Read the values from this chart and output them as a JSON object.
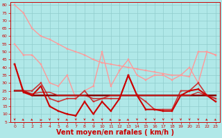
{
  "bg_color": "#b0e8e8",
  "grid_color": "#90cccc",
  "xlabel": "Vent moyen/en rafales ( km/h )",
  "xlabel_color": "#cc0000",
  "xlabel_fontsize": 7,
  "tick_color": "#cc0000",
  "ylim": [
    5,
    82
  ],
  "xlim": [
    -0.5,
    23.5
  ],
  "yticks": [
    5,
    10,
    15,
    20,
    25,
    30,
    35,
    40,
    45,
    50,
    55,
    60,
    65,
    70,
    75,
    80
  ],
  "xticks": [
    0,
    1,
    2,
    3,
    4,
    5,
    6,
    7,
    8,
    9,
    10,
    11,
    12,
    13,
    14,
    15,
    16,
    17,
    18,
    19,
    20,
    21,
    22,
    23
  ],
  "lines": [
    {
      "x": [
        0,
        1,
        2,
        3,
        4,
        5,
        6,
        7,
        8,
        9,
        10,
        11,
        12,
        13,
        14,
        15,
        16,
        17,
        18,
        19,
        20,
        21,
        22,
        23
      ],
      "y": [
        80,
        75,
        65,
        60,
        58,
        55,
        52,
        50,
        48,
        45,
        43,
        42,
        41,
        40,
        39,
        38,
        37,
        36,
        35,
        35,
        34,
        50,
        50,
        48
      ],
      "color": "#ff9999",
      "lw": 1.0,
      "marker": "s",
      "ms": 2.0
    },
    {
      "x": [
        0,
        1,
        2,
        3,
        4,
        5,
        6,
        7,
        8,
        9,
        10,
        11,
        12,
        13,
        14,
        15,
        16,
        17,
        18,
        19,
        20,
        21,
        22,
        23
      ],
      "y": [
        55,
        48,
        48,
        42,
        30,
        28,
        35,
        20,
        25,
        28,
        50,
        28,
        38,
        45,
        35,
        32,
        35,
        35,
        32,
        35,
        40,
        30,
        50,
        48
      ],
      "color": "#ff9999",
      "lw": 1.0,
      "marker": "s",
      "ms": 2.0
    },
    {
      "x": [
        0,
        1,
        2,
        3,
        4,
        5,
        6,
        7,
        8,
        9,
        10,
        11,
        12,
        13,
        14,
        15,
        16,
        17,
        18,
        19,
        20,
        21,
        22,
        23
      ],
      "y": [
        42,
        25,
        25,
        30,
        20,
        18,
        20,
        20,
        25,
        18,
        20,
        20,
        20,
        35,
        22,
        18,
        13,
        13,
        13,
        25,
        25,
        30,
        22,
        20
      ],
      "color": "#cc3333",
      "lw": 1.2,
      "marker": "s",
      "ms": 2.0
    },
    {
      "x": [
        0,
        1,
        2,
        3,
        4,
        5,
        6,
        7,
        8,
        9,
        10,
        11,
        12,
        13,
        14,
        15,
        16,
        17,
        18,
        19,
        20,
        21,
        22,
        23
      ],
      "y": [
        25,
        25,
        22,
        22,
        22,
        22,
        22,
        22,
        22,
        22,
        22,
        22,
        22,
        22,
        22,
        22,
        22,
        22,
        22,
        22,
        22,
        22,
        22,
        22
      ],
      "color": "#880000",
      "lw": 1.8,
      "marker": null,
      "ms": 0
    },
    {
      "x": [
        0,
        1,
        2,
        3,
        4,
        5,
        6,
        7,
        8,
        9,
        10,
        11,
        12,
        13,
        14,
        15,
        16,
        17,
        18,
        19,
        20,
        21,
        22,
        23
      ],
      "y": [
        25,
        25,
        23,
        24,
        24,
        22,
        22,
        22,
        22,
        20,
        20,
        22,
        22,
        22,
        22,
        22,
        22,
        22,
        22,
        22,
        22,
        24,
        22,
        20
      ],
      "color": "#cc2222",
      "lw": 1.0,
      "marker": null,
      "ms": 0
    },
    {
      "x": [
        0,
        1,
        2,
        3,
        4,
        5,
        6,
        7,
        8,
        9,
        10,
        11,
        12,
        13,
        14,
        15,
        16,
        17,
        18,
        19,
        20,
        21,
        22,
        23
      ],
      "y": [
        42,
        24,
        22,
        28,
        15,
        12,
        10,
        9,
        18,
        10,
        18,
        12,
        20,
        35,
        22,
        13,
        13,
        12,
        12,
        22,
        25,
        26,
        22,
        18
      ],
      "color": "#cc0000",
      "lw": 1.5,
      "marker": "s",
      "ms": 2.0
    }
  ],
  "arrow_color": "#cc0000",
  "arrow_dirs": [
    0,
    45,
    45,
    90,
    0,
    0,
    45,
    0,
    0,
    45,
    0,
    45,
    90,
    45,
    0,
    0,
    0,
    0,
    0,
    0,
    0,
    0,
    45,
    45
  ]
}
